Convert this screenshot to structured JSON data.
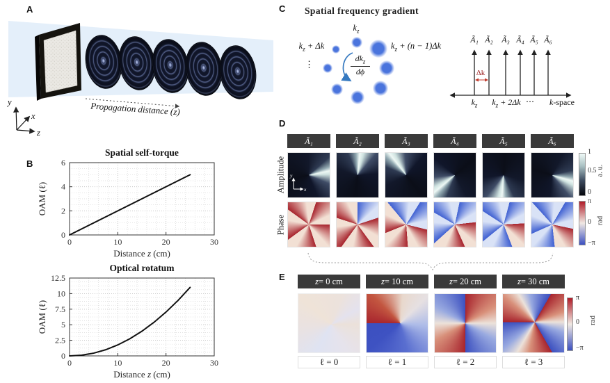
{
  "panels": {
    "a": "A",
    "b": "B",
    "c": "C",
    "d": "D",
    "e": "E"
  },
  "colors": {
    "dot_blue": "#4a74dd",
    "arrow_blue": "#3579c0",
    "delta_red": "#9c2222",
    "header_bg": "#3a3a3a",
    "phase_red": "#a8252e",
    "phase_blue": "#3c50c0",
    "beam_blue": "#dbe9f8",
    "line_black": "#111111"
  },
  "panel_a": {
    "caption": {
      "pre": "Propagation distance (",
      "var": "z",
      "post": ")"
    },
    "axes": {
      "y": "y",
      "x": "x",
      "z": "z"
    }
  },
  "panel_b": {
    "label": "B"
  },
  "chart_data": [
    {
      "type": "line",
      "title": "Spatial self-torque",
      "xlabel": {
        "pre": "Distance ",
        "var": "z",
        "post": " (cm)"
      },
      "ylabel": "OAM (ℓ)",
      "xlim": [
        0,
        30
      ],
      "ylim": [
        0,
        6
      ],
      "xticks": [
        0,
        10,
        20,
        30
      ],
      "yticks": [
        0,
        2,
        4,
        6
      ],
      "minor": {
        "x": 2,
        "y": 0.5
      },
      "grid": true,
      "legend": "none",
      "series": [
        {
          "name": "OAM",
          "x": [
            0,
            25
          ],
          "y": [
            0,
            5
          ]
        }
      ]
    },
    {
      "type": "line",
      "title": "Optical rotatum",
      "xlabel": {
        "pre": "Distance ",
        "var": "z",
        "post": " (cm)"
      },
      "ylabel": "OAM (ℓ)",
      "xlim": [
        0,
        30
      ],
      "ylim": [
        0,
        12.5
      ],
      "xticks": [
        0,
        10,
        20,
        30
      ],
      "yticks": [
        0,
        2.5,
        5,
        7.5,
        10,
        12.5
      ],
      "minor": {
        "x": 2,
        "y": 0.625
      },
      "grid": true,
      "legend": "none",
      "series": [
        {
          "name": "OAM",
          "x": [
            0,
            2.5,
            5,
            7.5,
            10,
            12.5,
            15,
            17.5,
            20,
            22.5,
            25
          ],
          "y": [
            0,
            0.11,
            0.44,
            0.99,
            1.76,
            2.75,
            3.96,
            5.39,
            7.04,
            8.91,
            11.0
          ]
        }
      ]
    }
  ],
  "panel_c": {
    "title": "Spatial frequency gradient",
    "ring": {
      "top_label": {
        "base": "k",
        "sub": "z"
      },
      "left_label": {
        "base": "k",
        "sub": "z",
        "rest": " + Δk"
      },
      "right_label": {
        "base": "k",
        "sub": "z",
        "rest": " + (n − 1)Δk"
      },
      "vdots": "⋮",
      "fraction": {
        "num_base": "dk",
        "num_sub": "z",
        "den": "dϕ"
      }
    },
    "kspace": {
      "arrow_labels": [
        "Ã₁",
        "Ã₂",
        "Ã₃",
        "Ã₄",
        "Ã₅",
        "Ã₆"
      ],
      "delta_label": "Δk",
      "tick1": {
        "base": "k",
        "sub": "z"
      },
      "tick2": {
        "base": "k",
        "sub": "z",
        "rest": " + 2Δk"
      },
      "dots": "⋯",
      "axis_label": {
        "var": "k",
        "rest": "-space"
      }
    }
  },
  "panel_d": {
    "columns": [
      "Ã₁",
      "Ã₂",
      "Ã₃",
      "Ã₄",
      "Ã₅",
      "Ã₆"
    ],
    "row_labels": [
      "Amplitude",
      "Phase"
    ],
    "amp_colorbar": {
      "ticks": [
        "1",
        "0.5",
        "0"
      ],
      "label": "a. u."
    },
    "phase_colorbar": {
      "ticks": [
        "π",
        "0",
        "−π"
      ],
      "label": "rad"
    },
    "inset_axes": {
      "y": "y",
      "x": "x"
    }
  },
  "panel_e": {
    "headers": [
      {
        "var": "z",
        "rest": " = 0 cm"
      },
      {
        "var": "z",
        "rest": " = 10 cm"
      },
      {
        "var": "z",
        "rest": " = 20 cm"
      },
      {
        "var": "z",
        "rest": " = 30 cm"
      }
    ],
    "footers": [
      "ℓ = 0",
      "ℓ = 1",
      "ℓ = 2",
      "ℓ = 3"
    ],
    "colorbar": {
      "ticks": [
        "π",
        "0",
        "−π"
      ],
      "label": "rad"
    }
  }
}
